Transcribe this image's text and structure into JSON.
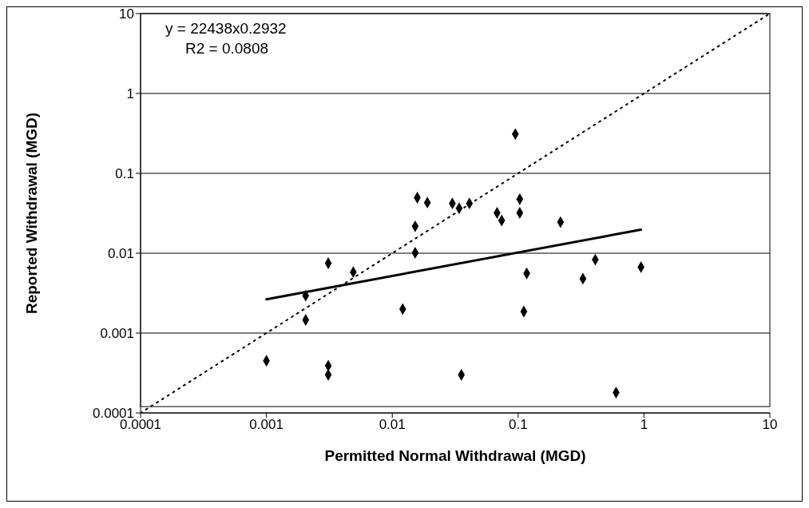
{
  "chart_data": {
    "type": "scatter",
    "xlabel": "Permitted Normal Withdrawal (MGD)",
    "ylabel": "Reported Withdrawal (MGD)",
    "log": "xy",
    "grid": "y",
    "legend": false,
    "marker": "diamond",
    "xlim": [
      0.0001,
      10
    ],
    "xticks": [
      0.0001,
      0.001,
      0.01,
      0.1,
      1,
      10
    ],
    "ylim": [
      0.0001,
      10
    ],
    "yticks": [
      0.0001,
      0.001,
      0.01,
      0.1,
      1,
      10
    ],
    "annotations": [
      "y = 22438x0.2932",
      "R2 = 0.0808"
    ],
    "series": [
      {
        "color": "#000000",
        "x": [
          0.095,
          0.0158,
          0.019,
          0.03,
          0.034,
          0.041,
          0.068,
          0.074,
          0.103,
          0.103,
          0.0152,
          0.0152,
          0.0031,
          0.0049,
          0.00205,
          0.00205,
          0.0121,
          0.001,
          0.0031,
          0.0031,
          0.0354,
          0.117,
          0.111,
          0.217,
          0.41,
          0.327,
          0.946,
          0.6
        ],
        "values": [
          0.31,
          0.0495,
          0.043,
          0.042,
          0.0365,
          0.042,
          0.032,
          0.0257,
          0.0475,
          0.032,
          0.0217,
          0.0101,
          0.0075,
          0.0058,
          0.00294,
          0.00146,
          0.002,
          0.00045,
          0.00039,
          0.0003,
          0.0003,
          0.0056,
          0.00186,
          0.0245,
          0.0083,
          0.0048,
          0.0067,
          0.00018
        ]
      },
      {
        "type": "line",
        "color": "#000000",
        "line_style": "solid",
        "marker": "none",
        "x": [
          0.001,
          0.946
        ],
        "values": [
          0.00265,
          0.0197
        ]
      },
      {
        "type": "line",
        "color": "#000000",
        "line_style": "dotted",
        "marker": "none",
        "x": [
          0.0001,
          10
        ],
        "values": [
          0.0001,
          10
        ]
      }
    ]
  }
}
